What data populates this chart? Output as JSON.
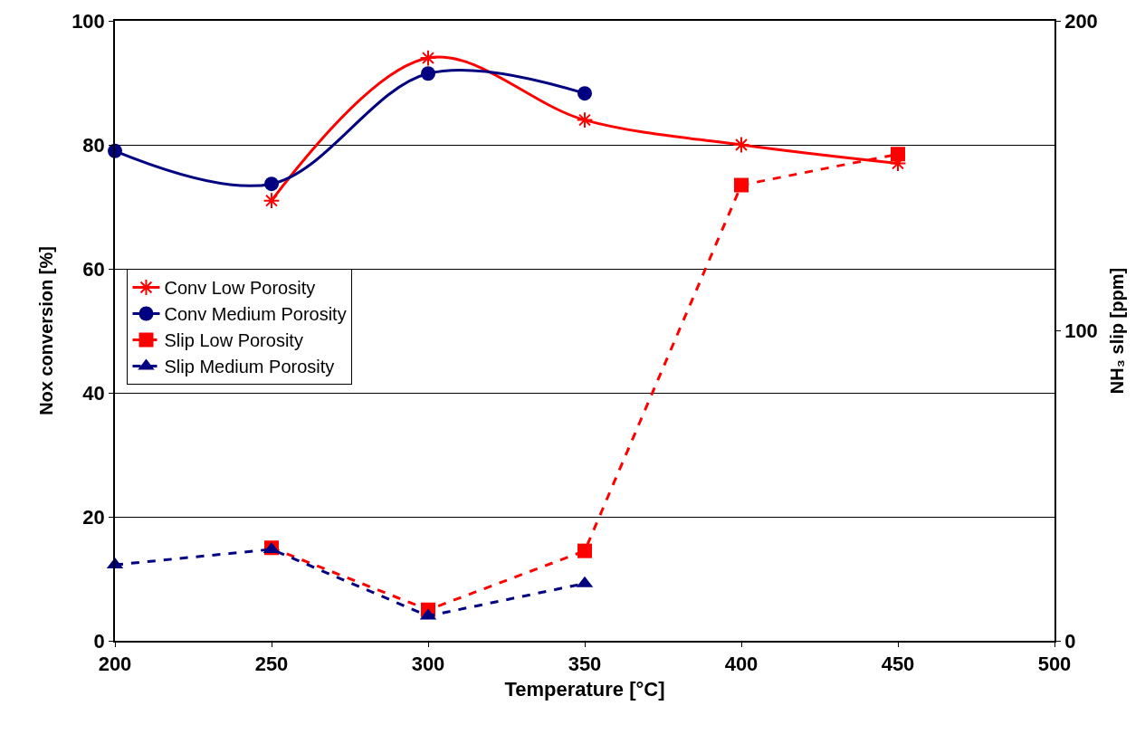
{
  "chart_data": {
    "type": "line",
    "xlabel": "Temperature [°C]",
    "ylabel": "Nox conversion [%]",
    "y2label": "NH₃ slip [ppm]",
    "xlim": [
      200,
      500
    ],
    "xticks": [
      200,
      250,
      300,
      350,
      400,
      450,
      500
    ],
    "ylim": [
      0,
      100
    ],
    "yticks": [
      0,
      20,
      40,
      60,
      80,
      100
    ],
    "y2lim": [
      0,
      200
    ],
    "y2ticks": [
      0,
      100,
      200
    ],
    "grid": "y",
    "legend": "left",
    "series": [
      {
        "name": "Conv Low Porosity",
        "color": "#ff0000",
        "marker": "cross",
        "line_style": "solid",
        "x": [
          250,
          300,
          350,
          400,
          450
        ],
        "values": [
          71,
          94,
          84,
          80,
          77
        ]
      },
      {
        "name": "Conv Medium Porosity",
        "color": "#000080",
        "marker": "circle",
        "line_style": "solid",
        "x": [
          200,
          250,
          300,
          350
        ],
        "values": [
          79,
          73.7,
          91.5,
          88.3
        ]
      },
      {
        "name": "Slip Low Porosity",
        "color": "#ff0000",
        "marker": "square",
        "line_style": "dashed",
        "axis": "y2",
        "x": [
          250,
          300,
          350,
          400,
          450
        ],
        "values": [
          30,
          10,
          29,
          147,
          157
        ]
      },
      {
        "name": "Slip Medium Porosity",
        "color": "#000080",
        "marker": "triangle",
        "line_style": "dashed",
        "axis": "y2",
        "x": [
          200,
          250,
          300,
          350
        ],
        "values": [
          24.5,
          29.5,
          8,
          18.5
        ]
      }
    ]
  }
}
